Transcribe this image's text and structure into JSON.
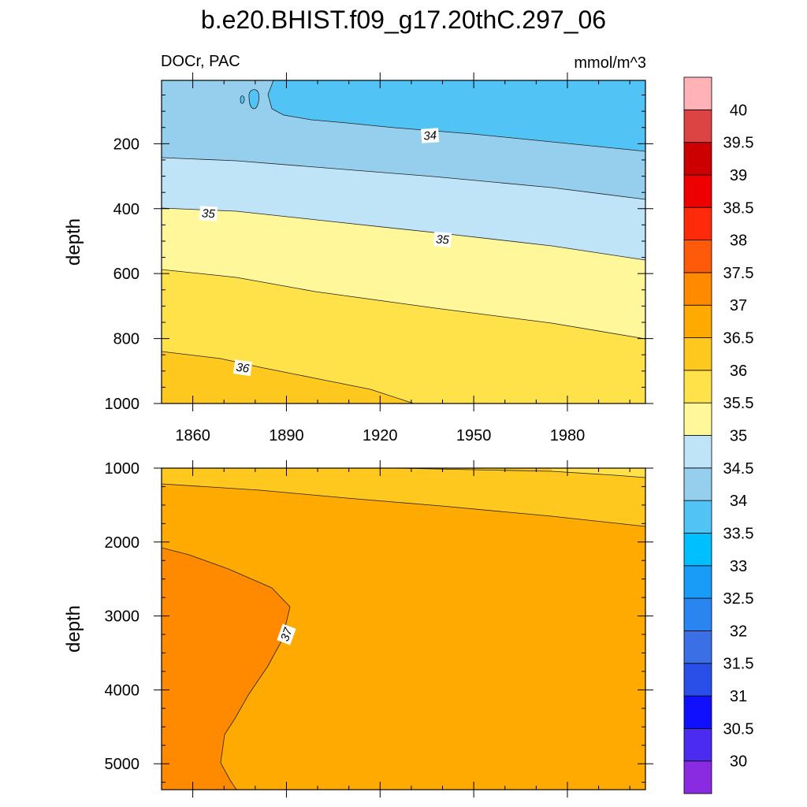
{
  "title": "b.e20.BHIST.f09_g17.20thC.297_06",
  "left_string": "DOCr, PAC",
  "right_string": "mmol/m^3",
  "colors": {
    "c30": "#8a2be2",
    "c30_5": "#4b2bf0",
    "c31": "#1010ff",
    "c31_5": "#2a4fe8",
    "c32": "#3a6fe6",
    "c32_5": "#2b85f0",
    "c33": "#189cf8",
    "c33_5": "#00bfff",
    "c34": "#52c3f5",
    "c34_5": "#96cfee",
    "c35": "#bfe3f7",
    "c35_5": "#fff79a",
    "c36": "#ffe24a",
    "c36_5": "#ffc81e",
    "c37": "#ffaa00",
    "c37_5": "#ff8a00",
    "c38": "#ff5a0a",
    "c38_5": "#ff2a0a",
    "c39": "#ee0000",
    "c39_5": "#cc0000",
    "c40": "#dc4444",
    "c40p": "#ffb3b6"
  },
  "chart_data": [
    {
      "type": "contour",
      "panel": "upper",
      "xlabel": "",
      "ylabel": "depth",
      "xlim": [
        1850,
        2005
      ],
      "ylim": [
        1000,
        5
      ],
      "xticks": [
        1860,
        1890,
        1920,
        1950,
        1980
      ],
      "yticks": [
        200,
        400,
        600,
        800,
        1000
      ],
      "contour_labels": [
        {
          "text": "34",
          "x": 1936,
          "y": 175
        },
        {
          "text": "35",
          "x": 1865,
          "y": 415
        },
        {
          "text": "35",
          "x": 1940,
          "y": 495
        },
        {
          "text": "36",
          "x": 1876,
          "y": 890
        }
      ]
    },
    {
      "type": "contour",
      "panel": "lower",
      "xlabel": "",
      "ylabel": "depth",
      "xlim": [
        1850,
        2005
      ],
      "ylim": [
        5350,
        1000
      ],
      "xticks": [
        1860,
        1890,
        1920,
        1950,
        1980
      ],
      "yticks": [
        1000,
        2000,
        3000,
        4000,
        5000
      ],
      "contour_labels": [
        {
          "text": "37",
          "x": 1890,
          "y": 3250
        }
      ]
    },
    {
      "type": "colorbar",
      "levels": [
        "30",
        "30.5",
        "31",
        "31.5",
        "32",
        "32.5",
        "33",
        "33.5",
        "34",
        "34.5",
        "35",
        "35.5",
        "36",
        "36.5",
        "37",
        "37.5",
        "38",
        "38.5",
        "39",
        "39.5",
        "40"
      ]
    }
  ]
}
